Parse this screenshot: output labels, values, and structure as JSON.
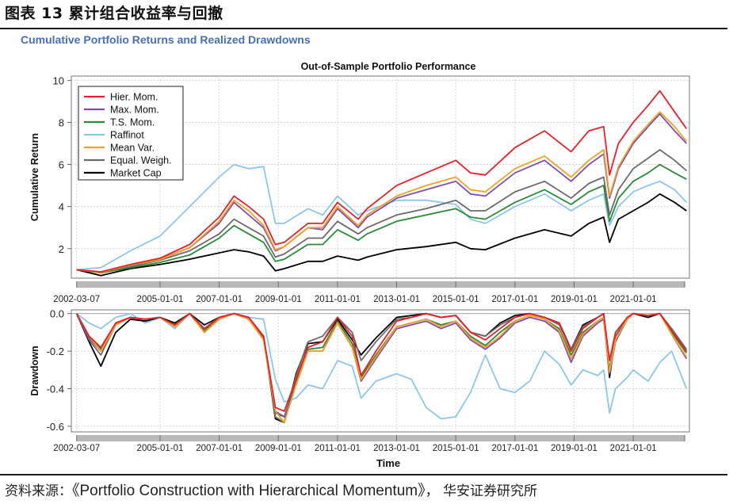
{
  "figure": {
    "title": "图表 13  累计组合收益率与回撤",
    "subtitle": "Cumulative Portfolio Returns and Realized Drawdowns",
    "source_label": "资料来源：",
    "source_title": "《Portfolio Construction with Hierarchical Momentum》",
    "source_org": "，  华安证券研究所"
  },
  "chart_data": [
    {
      "type": "line",
      "title": "Out-of-Sample Portfolio Performance",
      "xlabel": "",
      "ylabel": "Cumulative Return",
      "ylim": [
        0.6,
        10.2
      ],
      "yticks": [
        2,
        4,
        6,
        8,
        10
      ],
      "xlim": [
        2002.0,
        2022.9
      ],
      "xtick_labels": [
        "2002-03-07",
        "2005-01-01",
        "2007-01-01",
        "2009-01-01",
        "2011-01-01",
        "2013-01-01",
        "2015-01-01",
        "2017-01-01",
        "2019-01-01",
        "2021-01-01"
      ],
      "xtick_values": [
        2002.18,
        2005.0,
        2007.0,
        2009.0,
        2011.0,
        2013.0,
        2015.0,
        2017.0,
        2019.0,
        2021.0
      ],
      "grid": true,
      "legend_position": "top-left",
      "x": [
        2002.18,
        2003.0,
        2004.0,
        2005.0,
        2006.0,
        2007.0,
        2007.5,
        2008.0,
        2008.5,
        2008.9,
        2009.2,
        2010.0,
        2010.5,
        2011.0,
        2011.7,
        2012.0,
        2013.0,
        2014.0,
        2015.0,
        2015.5,
        2016.0,
        2017.0,
        2018.0,
        2018.9,
        2019.5,
        2020.0,
        2020.2,
        2020.5,
        2021.0,
        2021.5,
        2021.9,
        2022.4,
        2022.8
      ],
      "series": [
        {
          "name": "Hier. Mom.",
          "color": "#e8202a",
          "values": [
            1.0,
            0.9,
            1.25,
            1.55,
            2.2,
            3.5,
            4.5,
            4.0,
            3.4,
            2.2,
            2.3,
            3.2,
            3.2,
            4.2,
            3.4,
            3.9,
            5.0,
            5.6,
            6.2,
            5.6,
            5.5,
            6.8,
            7.6,
            6.6,
            7.6,
            7.8,
            5.5,
            7.0,
            8.0,
            8.8,
            9.5,
            8.5,
            7.7
          ]
        },
        {
          "name": "Max. Mom.",
          "color": "#7b4fb0",
          "values": [
            1.0,
            0.88,
            1.22,
            1.5,
            2.05,
            3.2,
            4.2,
            3.6,
            3.0,
            1.9,
            2.1,
            3.0,
            2.9,
            3.9,
            3.0,
            3.5,
            4.4,
            4.8,
            5.2,
            4.6,
            4.5,
            5.6,
            6.2,
            5.2,
            6.0,
            6.5,
            4.4,
            5.8,
            7.0,
            7.8,
            8.4,
            7.6,
            7.0
          ]
        },
        {
          "name": "T.S. Mom.",
          "color": "#2a8a3a",
          "values": [
            1.0,
            0.85,
            1.1,
            1.35,
            1.7,
            2.5,
            3.1,
            2.7,
            2.3,
            1.4,
            1.5,
            2.2,
            2.2,
            2.9,
            2.4,
            2.7,
            3.3,
            3.6,
            3.9,
            3.5,
            3.4,
            4.2,
            4.8,
            4.1,
            4.7,
            5.0,
            3.3,
            4.4,
            5.2,
            5.6,
            6.0,
            5.6,
            5.3
          ]
        },
        {
          "name": "Raffinot",
          "color": "#8ec6ea",
          "values": [
            1.0,
            1.1,
            1.9,
            2.6,
            4.0,
            5.4,
            6.0,
            5.8,
            5.9,
            3.2,
            3.2,
            3.9,
            3.6,
            4.5,
            3.6,
            3.8,
            4.3,
            4.3,
            4.1,
            3.4,
            3.2,
            4.0,
            4.6,
            3.8,
            4.3,
            4.6,
            3.1,
            4.0,
            4.7,
            5.0,
            5.2,
            4.8,
            4.2
          ]
        },
        {
          "name": "Mean Var.",
          "color": "#f4a124",
          "values": [
            1.0,
            0.87,
            1.22,
            1.48,
            2.05,
            3.3,
            4.3,
            3.8,
            3.1,
            1.95,
            2.1,
            3.0,
            3.0,
            4.0,
            3.1,
            3.6,
            4.5,
            5.0,
            5.4,
            4.8,
            4.7,
            5.8,
            6.4,
            5.4,
            6.2,
            6.7,
            4.5,
            5.9,
            7.1,
            7.9,
            8.5,
            7.8,
            7.1
          ]
        },
        {
          "name": "Equal. Weigh.",
          "color": "#6b6b6b",
          "values": [
            1.0,
            0.87,
            1.15,
            1.45,
            1.9,
            2.7,
            3.4,
            3.0,
            2.6,
            1.6,
            1.75,
            2.5,
            2.5,
            3.3,
            2.7,
            3.0,
            3.6,
            3.9,
            4.3,
            3.8,
            3.8,
            4.7,
            5.2,
            4.4,
            5.1,
            5.4,
            3.6,
            4.8,
            5.8,
            6.3,
            6.7,
            6.2,
            5.7
          ]
        },
        {
          "name": "Market Cap",
          "color": "#000000",
          "values": [
            1.0,
            0.72,
            1.05,
            1.25,
            1.5,
            1.8,
            1.95,
            1.85,
            1.65,
            0.95,
            1.05,
            1.4,
            1.4,
            1.65,
            1.45,
            1.6,
            1.95,
            2.1,
            2.3,
            2.0,
            1.95,
            2.5,
            2.9,
            2.6,
            3.2,
            3.5,
            2.3,
            3.4,
            3.8,
            4.2,
            4.6,
            4.2,
            3.8
          ]
        }
      ]
    },
    {
      "type": "line",
      "title": "",
      "xlabel": "Time",
      "ylabel": "Drawdown",
      "ylim": [
        -0.63,
        0.02
      ],
      "yticks": [
        0.0,
        -0.2,
        -0.4,
        -0.6
      ],
      "ytick_labels": [
        "0.0",
        "-0.2",
        "-0.4",
        "-0.6"
      ],
      "xlim": [
        2002.0,
        2022.9
      ],
      "grid": true,
      "x": [
        2002.18,
        2002.6,
        2003.0,
        2003.5,
        2004.0,
        2004.5,
        2005.0,
        2005.5,
        2006.0,
        2006.5,
        2007.0,
        2007.5,
        2008.0,
        2008.5,
        2008.9,
        2009.2,
        2009.6,
        2010.0,
        2010.5,
        2011.0,
        2011.5,
        2011.8,
        2012.3,
        2013.0,
        2013.5,
        2014.0,
        2014.5,
        2015.0,
        2015.5,
        2016.0,
        2016.5,
        2017.0,
        2017.5,
        2018.0,
        2018.5,
        2018.9,
        2019.3,
        2019.8,
        2020.0,
        2020.2,
        2020.4,
        2020.8,
        2021.0,
        2021.5,
        2021.9,
        2022.3,
        2022.8
      ],
      "series": [
        {
          "name": "Hier. Mom.",
          "color": "#e8202a",
          "values": [
            0.0,
            -0.12,
            -0.18,
            -0.05,
            -0.02,
            -0.03,
            -0.02,
            -0.06,
            0.0,
            -0.08,
            -0.02,
            0.0,
            -0.02,
            -0.12,
            -0.5,
            -0.52,
            -0.35,
            -0.18,
            -0.15,
            -0.02,
            -0.12,
            -0.33,
            -0.2,
            -0.04,
            -0.02,
            0.0,
            -0.02,
            -0.01,
            -0.1,
            -0.14,
            -0.08,
            -0.02,
            0.0,
            -0.02,
            -0.05,
            -0.2,
            -0.08,
            -0.02,
            0.0,
            -0.25,
            -0.1,
            -0.02,
            0.0,
            -0.01,
            0.0,
            -0.09,
            -0.2
          ]
        },
        {
          "name": "Max. Mom.",
          "color": "#7b4fb0",
          "values": [
            0.0,
            -0.13,
            -0.2,
            -0.06,
            -0.02,
            -0.03,
            -0.02,
            -0.07,
            0.0,
            -0.1,
            -0.03,
            0.0,
            -0.03,
            -0.14,
            -0.52,
            -0.55,
            -0.38,
            -0.2,
            -0.2,
            -0.05,
            -0.18,
            -0.36,
            -0.24,
            -0.08,
            -0.06,
            -0.04,
            -0.08,
            -0.05,
            -0.14,
            -0.19,
            -0.13,
            -0.05,
            -0.02,
            -0.04,
            -0.1,
            -0.26,
            -0.12,
            -0.05,
            -0.03,
            -0.32,
            -0.15,
            -0.03,
            0.0,
            -0.01,
            0.0,
            -0.11,
            -0.24
          ]
        },
        {
          "name": "T.S. Mom.",
          "color": "#2a8a3a",
          "values": [
            0.0,
            -0.12,
            -0.19,
            -0.05,
            -0.02,
            -0.03,
            -0.02,
            -0.06,
            0.0,
            -0.09,
            -0.02,
            0.0,
            -0.02,
            -0.13,
            -0.53,
            -0.55,
            -0.36,
            -0.19,
            -0.18,
            -0.04,
            -0.16,
            -0.34,
            -0.22,
            -0.07,
            -0.05,
            -0.03,
            -0.06,
            -0.04,
            -0.12,
            -0.17,
            -0.1,
            -0.04,
            -0.01,
            -0.03,
            -0.08,
            -0.22,
            -0.1,
            -0.04,
            -0.02,
            -0.3,
            -0.14,
            -0.03,
            0.0,
            -0.01,
            0.0,
            -0.1,
            -0.21
          ]
        },
        {
          "name": "Raffinot",
          "color": "#8ec6ea",
          "values": [
            0.0,
            -0.05,
            -0.08,
            -0.02,
            0.0,
            -0.05,
            -0.02,
            -0.08,
            0.0,
            -0.06,
            -0.02,
            0.0,
            -0.02,
            -0.03,
            -0.35,
            -0.47,
            -0.45,
            -0.38,
            -0.4,
            -0.25,
            -0.28,
            -0.45,
            -0.36,
            -0.32,
            -0.35,
            -0.5,
            -0.56,
            -0.55,
            -0.42,
            -0.22,
            -0.4,
            -0.42,
            -0.36,
            -0.2,
            -0.27,
            -0.38,
            -0.3,
            -0.33,
            -0.3,
            -0.53,
            -0.4,
            -0.34,
            -0.3,
            -0.36,
            -0.26,
            -0.2,
            -0.4
          ]
        },
        {
          "name": "Mean Var.",
          "color": "#f4a124",
          "values": [
            0.0,
            -0.12,
            -0.2,
            -0.06,
            -0.02,
            -0.03,
            -0.02,
            -0.07,
            0.0,
            -0.1,
            -0.03,
            0.0,
            -0.03,
            -0.14,
            -0.52,
            -0.58,
            -0.38,
            -0.2,
            -0.2,
            -0.05,
            -0.18,
            -0.35,
            -0.23,
            -0.07,
            -0.05,
            -0.03,
            -0.07,
            -0.04,
            -0.13,
            -0.18,
            -0.12,
            -0.04,
            -0.01,
            -0.03,
            -0.09,
            -0.24,
            -0.11,
            -0.04,
            -0.02,
            -0.31,
            -0.14,
            -0.03,
            0.0,
            -0.01,
            0.0,
            -0.11,
            -0.23
          ]
        },
        {
          "name": "Equal. Weigh.",
          "color": "#6b6b6b",
          "values": [
            0.0,
            -0.14,
            -0.22,
            -0.06,
            -0.02,
            -0.03,
            -0.02,
            -0.06,
            0.0,
            -0.08,
            -0.02,
            0.0,
            -0.02,
            -0.12,
            -0.55,
            -0.58,
            -0.33,
            -0.15,
            -0.12,
            -0.02,
            -0.1,
            -0.25,
            -0.15,
            -0.03,
            -0.02,
            0.0,
            -0.02,
            -0.01,
            -0.1,
            -0.12,
            -0.06,
            -0.02,
            0.0,
            -0.02,
            -0.06,
            -0.19,
            -0.07,
            -0.02,
            0.0,
            -0.3,
            -0.12,
            -0.02,
            0.0,
            -0.01,
            0.0,
            -0.08,
            -0.19
          ]
        },
        {
          "name": "Market Cap",
          "color": "#000000",
          "values": [
            0.0,
            -0.15,
            -0.28,
            -0.1,
            -0.03,
            -0.04,
            -0.02,
            -0.05,
            0.0,
            -0.06,
            -0.02,
            0.0,
            -0.03,
            -0.12,
            -0.56,
            -0.58,
            -0.32,
            -0.16,
            -0.15,
            -0.03,
            -0.14,
            -0.22,
            -0.13,
            -0.02,
            -0.01,
            0.0,
            -0.02,
            -0.01,
            -0.1,
            -0.12,
            -0.05,
            -0.01,
            0.0,
            -0.02,
            -0.05,
            -0.19,
            -0.06,
            -0.02,
            0.0,
            -0.34,
            -0.12,
            -0.02,
            0.0,
            -0.02,
            0.0,
            -0.1,
            -0.2
          ]
        }
      ]
    }
  ]
}
